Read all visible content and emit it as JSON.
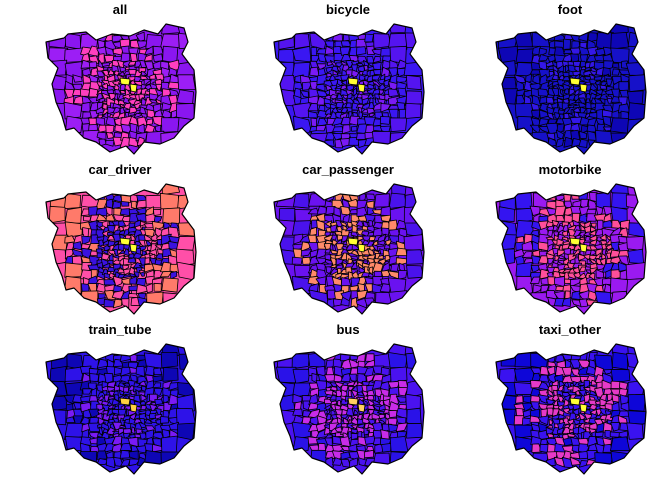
{
  "figure": {
    "panels": [
      {
        "title": "all",
        "base": "#8A16F0",
        "outer": "#9C1EF5",
        "inner": "#FF3FBF",
        "hot": "#FFFF33",
        "mix": 0.55
      },
      {
        "title": "bicycle",
        "base": "#3A17F2",
        "outer": "#5414F0",
        "inner": "#7A1AF5",
        "hot": "#FFFF33",
        "mix": 0.35
      },
      {
        "title": "foot",
        "base": "#1611C9",
        "outer": "#0E06B5",
        "inner": "#3417E8",
        "hot": "#FFFF33",
        "mix": 0.3
      },
      {
        "title": "car_driver",
        "base": "#FF4FA8",
        "outer": "#FF7A6A",
        "inner": "#3A12E0",
        "hot": "#FFFF33",
        "mix": 0.6
      },
      {
        "title": "car_passenger",
        "base": "#6A12F0",
        "outer": "#4A12EC",
        "inner": "#FF8A6A",
        "hot": "#FFFF33",
        "mix": 0.55
      },
      {
        "title": "motorbike",
        "base": "#9A1AF0",
        "outer": "#3414F0",
        "inner": "#FF4F9A",
        "hot": "#FFFF33",
        "mix": 0.6
      },
      {
        "title": "train_tube",
        "base": "#2E12E8",
        "outer": "#0E06B5",
        "inner": "#7A1AF5",
        "hot": "#FFD040",
        "mix": 0.4
      },
      {
        "title": "bus",
        "base": "#4A12F0",
        "outer": "#2A12E8",
        "inner": "#C82CE8",
        "hot": "#FFD060",
        "mix": 0.6
      },
      {
        "title": "taxi_other",
        "base": "#3A12F0",
        "outer": "#0E06D8",
        "inner": "#E63AC8",
        "hot": "#FFFF33",
        "mix": 0.55
      }
    ]
  }
}
